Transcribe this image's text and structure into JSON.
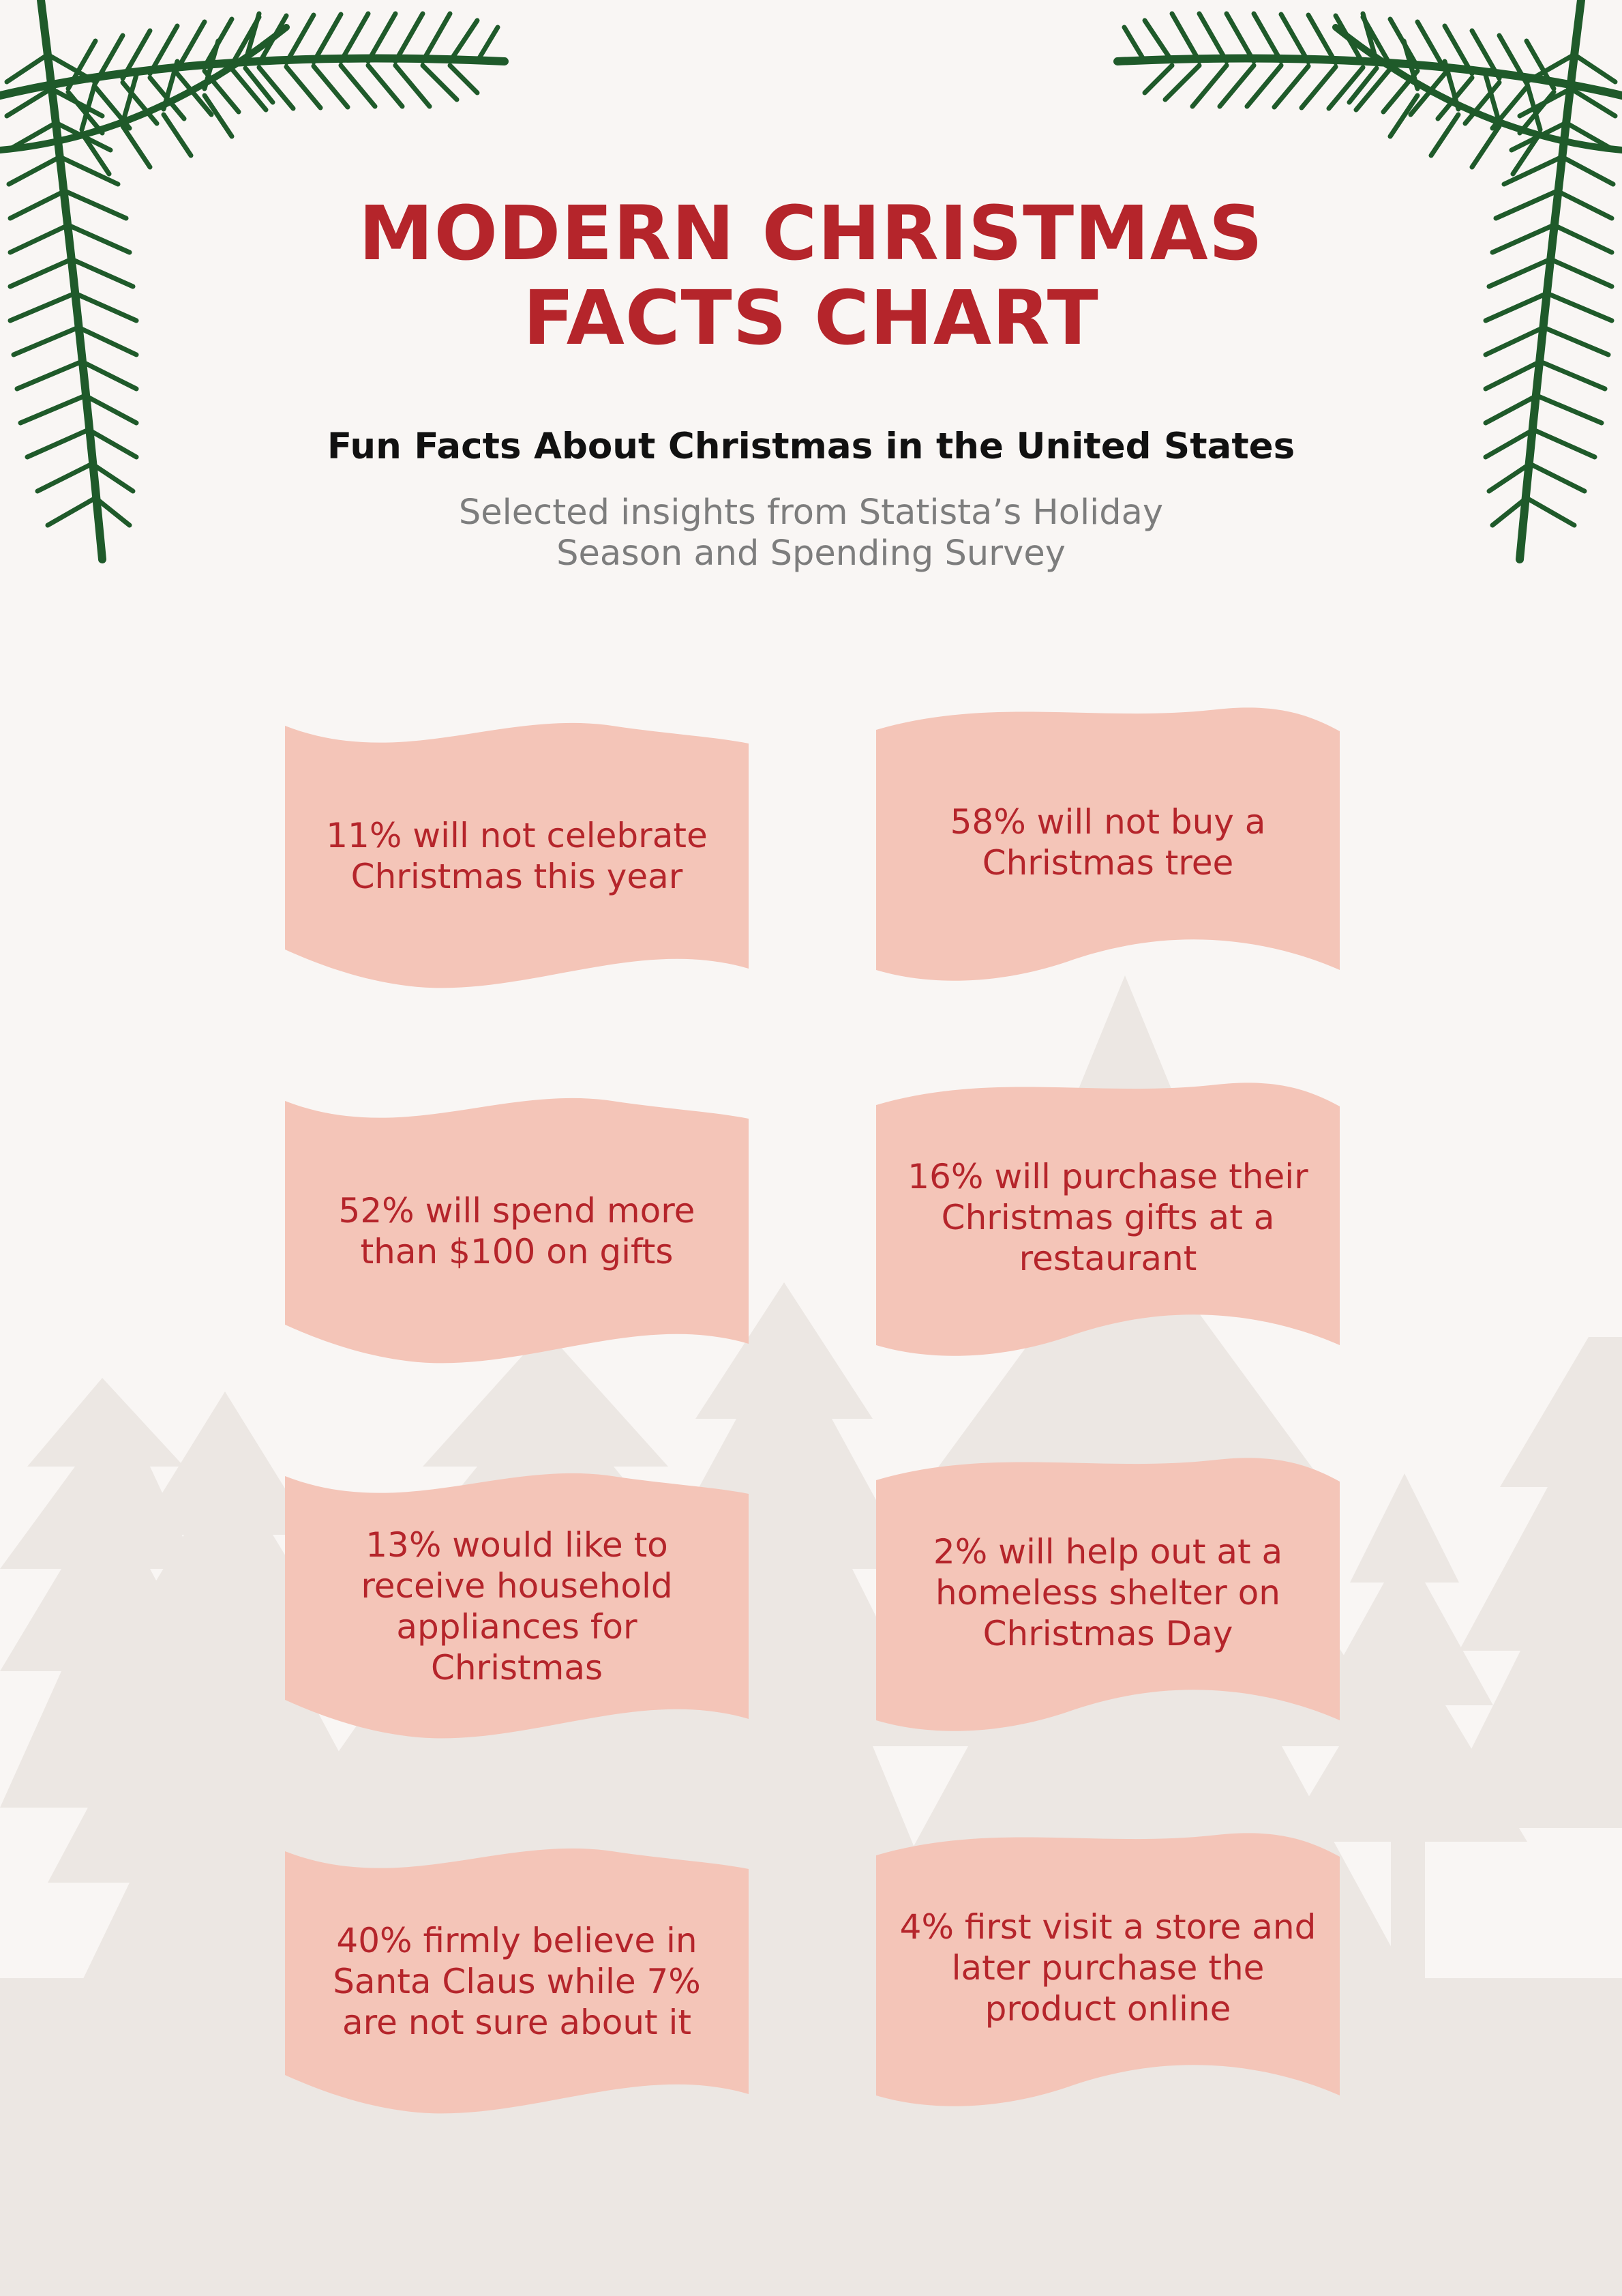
{
  "title": {
    "line1": "MODERN CHRISTMAS",
    "line2": "FACTS CHART"
  },
  "subtitle": "Fun Facts About Christmas in the United States",
  "source": {
    "line1": "Selected insights from Statista’s Holiday",
    "line2": "Season and Spending Survey"
  },
  "facts": [
    "11% will not celebrate Christmas this year",
    "58% will not buy a Christmas tree",
    "52% will spend more than $100 on gifts",
    "16% will purchase their Christmas gifts at a restaurant",
    "13% would like to receive household appliances for Christmas",
    "2% will help out at a homeless shelter on Christmas Day",
    "40% firmly believe in Santa Claus while 7% are not sure about it",
    "4% first visit a store and later purchase the product online"
  ],
  "colors": {
    "background": "#f9f6f4",
    "accent": "#b5252b",
    "flag": "#f4c5b8",
    "branch": "#1f5a2a",
    "trees": "#ece7e3"
  },
  "icons": {
    "branch_left": "pine-branch-icon",
    "branch_right": "pine-branch-icon",
    "background": "pine-tree-silhouettes"
  }
}
